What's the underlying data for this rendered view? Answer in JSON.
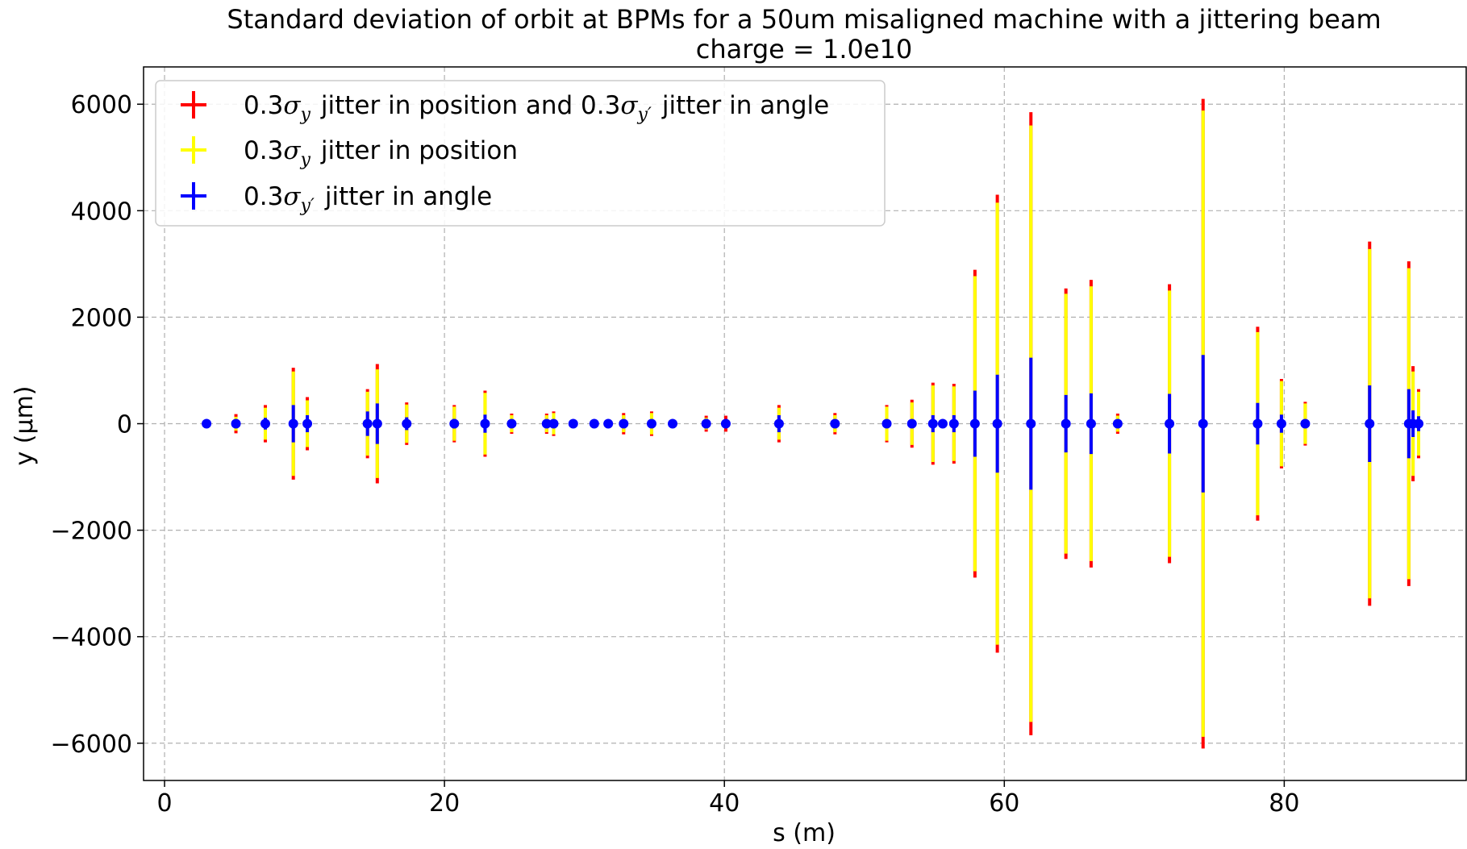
{
  "chart_data": {
    "type": "scatter",
    "title": "Standard deviation of orbit at BPMs for a 50um misaligned machine with a jittering beam",
    "subtitle": "charge = 1.0e10",
    "xlabel": "s (m)",
    "ylabel": "y (µm)",
    "xlim": [
      -1.5,
      93
    ],
    "ylim": [
      -6700,
      6700
    ],
    "xticks": [
      0,
      20,
      40,
      60,
      80
    ],
    "yticks": [
      -6000,
      -4000,
      -2000,
      0,
      2000,
      4000,
      6000
    ],
    "xtick_labels": [
      "0",
      "20",
      "40",
      "60",
      "80"
    ],
    "ytick_labels": [
      "−6000",
      "−4000",
      "−2000",
      "0",
      "2000",
      "4000",
      "6000"
    ],
    "grid": true,
    "legend_position": "top-left",
    "colors": {
      "both": "#ff0000",
      "position": "#ffff00",
      "angle": "#0000ff",
      "marker": "#0000ff"
    },
    "legend": [
      {
        "parts": [
          "0.3",
          "σ",
          "y",
          " jitter in position and 0.3",
          "σ",
          "y′",
          " jitter in angle"
        ]
      },
      {
        "parts": [
          "0.3",
          "σ",
          "y",
          " jitter in position"
        ]
      },
      {
        "parts": [
          "0.3",
          "σ",
          "y′",
          " jitter in angle"
        ]
      }
    ],
    "x": [
      3.0,
      5.1,
      7.2,
      9.2,
      10.2,
      14.5,
      15.2,
      17.3,
      20.7,
      22.9,
      24.8,
      27.3,
      27.8,
      29.2,
      30.7,
      31.7,
      32.8,
      34.8,
      36.3,
      38.7,
      40.1,
      43.9,
      47.9,
      51.6,
      53.4,
      54.9,
      55.6,
      56.4,
      57.9,
      59.5,
      61.9,
      64.4,
      66.2,
      68.1,
      71.8,
      74.2,
      78.1,
      79.8,
      81.5,
      86.1,
      88.9,
      89.2,
      89.6
    ],
    "y": [
      0,
      0,
      0,
      0,
      0,
      0,
      0,
      0,
      0,
      0,
      0,
      0,
      0,
      0,
      0,
      0,
      0,
      0,
      0,
      0,
      0,
      0,
      0,
      0,
      0,
      0,
      0,
      0,
      0,
      0,
      0,
      0,
      0,
      0,
      0,
      0,
      0,
      0,
      0,
      0,
      0,
      0,
      0
    ],
    "series": [
      {
        "name": "0.3σy jitter in position and 0.3σy′ jitter in angle",
        "key": "both",
        "errors": [
          10,
          180,
          350,
          1050,
          500,
          650,
          1120,
          400,
          350,
          620,
          190,
          190,
          230,
          20,
          30,
          30,
          200,
          230,
          30,
          150,
          150,
          350,
          200,
          350,
          450,
          770,
          30,
          750,
          2890,
          4300,
          5850,
          2540,
          2700,
          190,
          2620,
          6100,
          1820,
          840,
          410,
          3420,
          3050,
          1080,
          650
        ]
      },
      {
        "name": "0.3σy jitter in position",
        "key": "position",
        "errors": [
          5,
          130,
          300,
          980,
          440,
          600,
          1020,
          360,
          320,
          580,
          160,
          160,
          200,
          10,
          20,
          20,
          160,
          200,
          20,
          110,
          60,
          300,
          160,
          320,
          400,
          720,
          20,
          700,
          2770,
          4150,
          5600,
          2440,
          2580,
          150,
          2500,
          5880,
          1720,
          800,
          380,
          3280,
          2920,
          980,
          600
        ]
      },
      {
        "name": "0.3σy′ jitter in angle",
        "key": "angle",
        "errors": [
          5,
          40,
          110,
          350,
          160,
          230,
          380,
          120,
          90,
          170,
          50,
          50,
          60,
          10,
          10,
          10,
          60,
          60,
          10,
          90,
          80,
          160,
          60,
          60,
          70,
          160,
          10,
          160,
          620,
          920,
          1240,
          540,
          570,
          80,
          560,
          1290,
          390,
          170,
          80,
          720,
          650,
          250,
          140
        ]
      }
    ]
  }
}
